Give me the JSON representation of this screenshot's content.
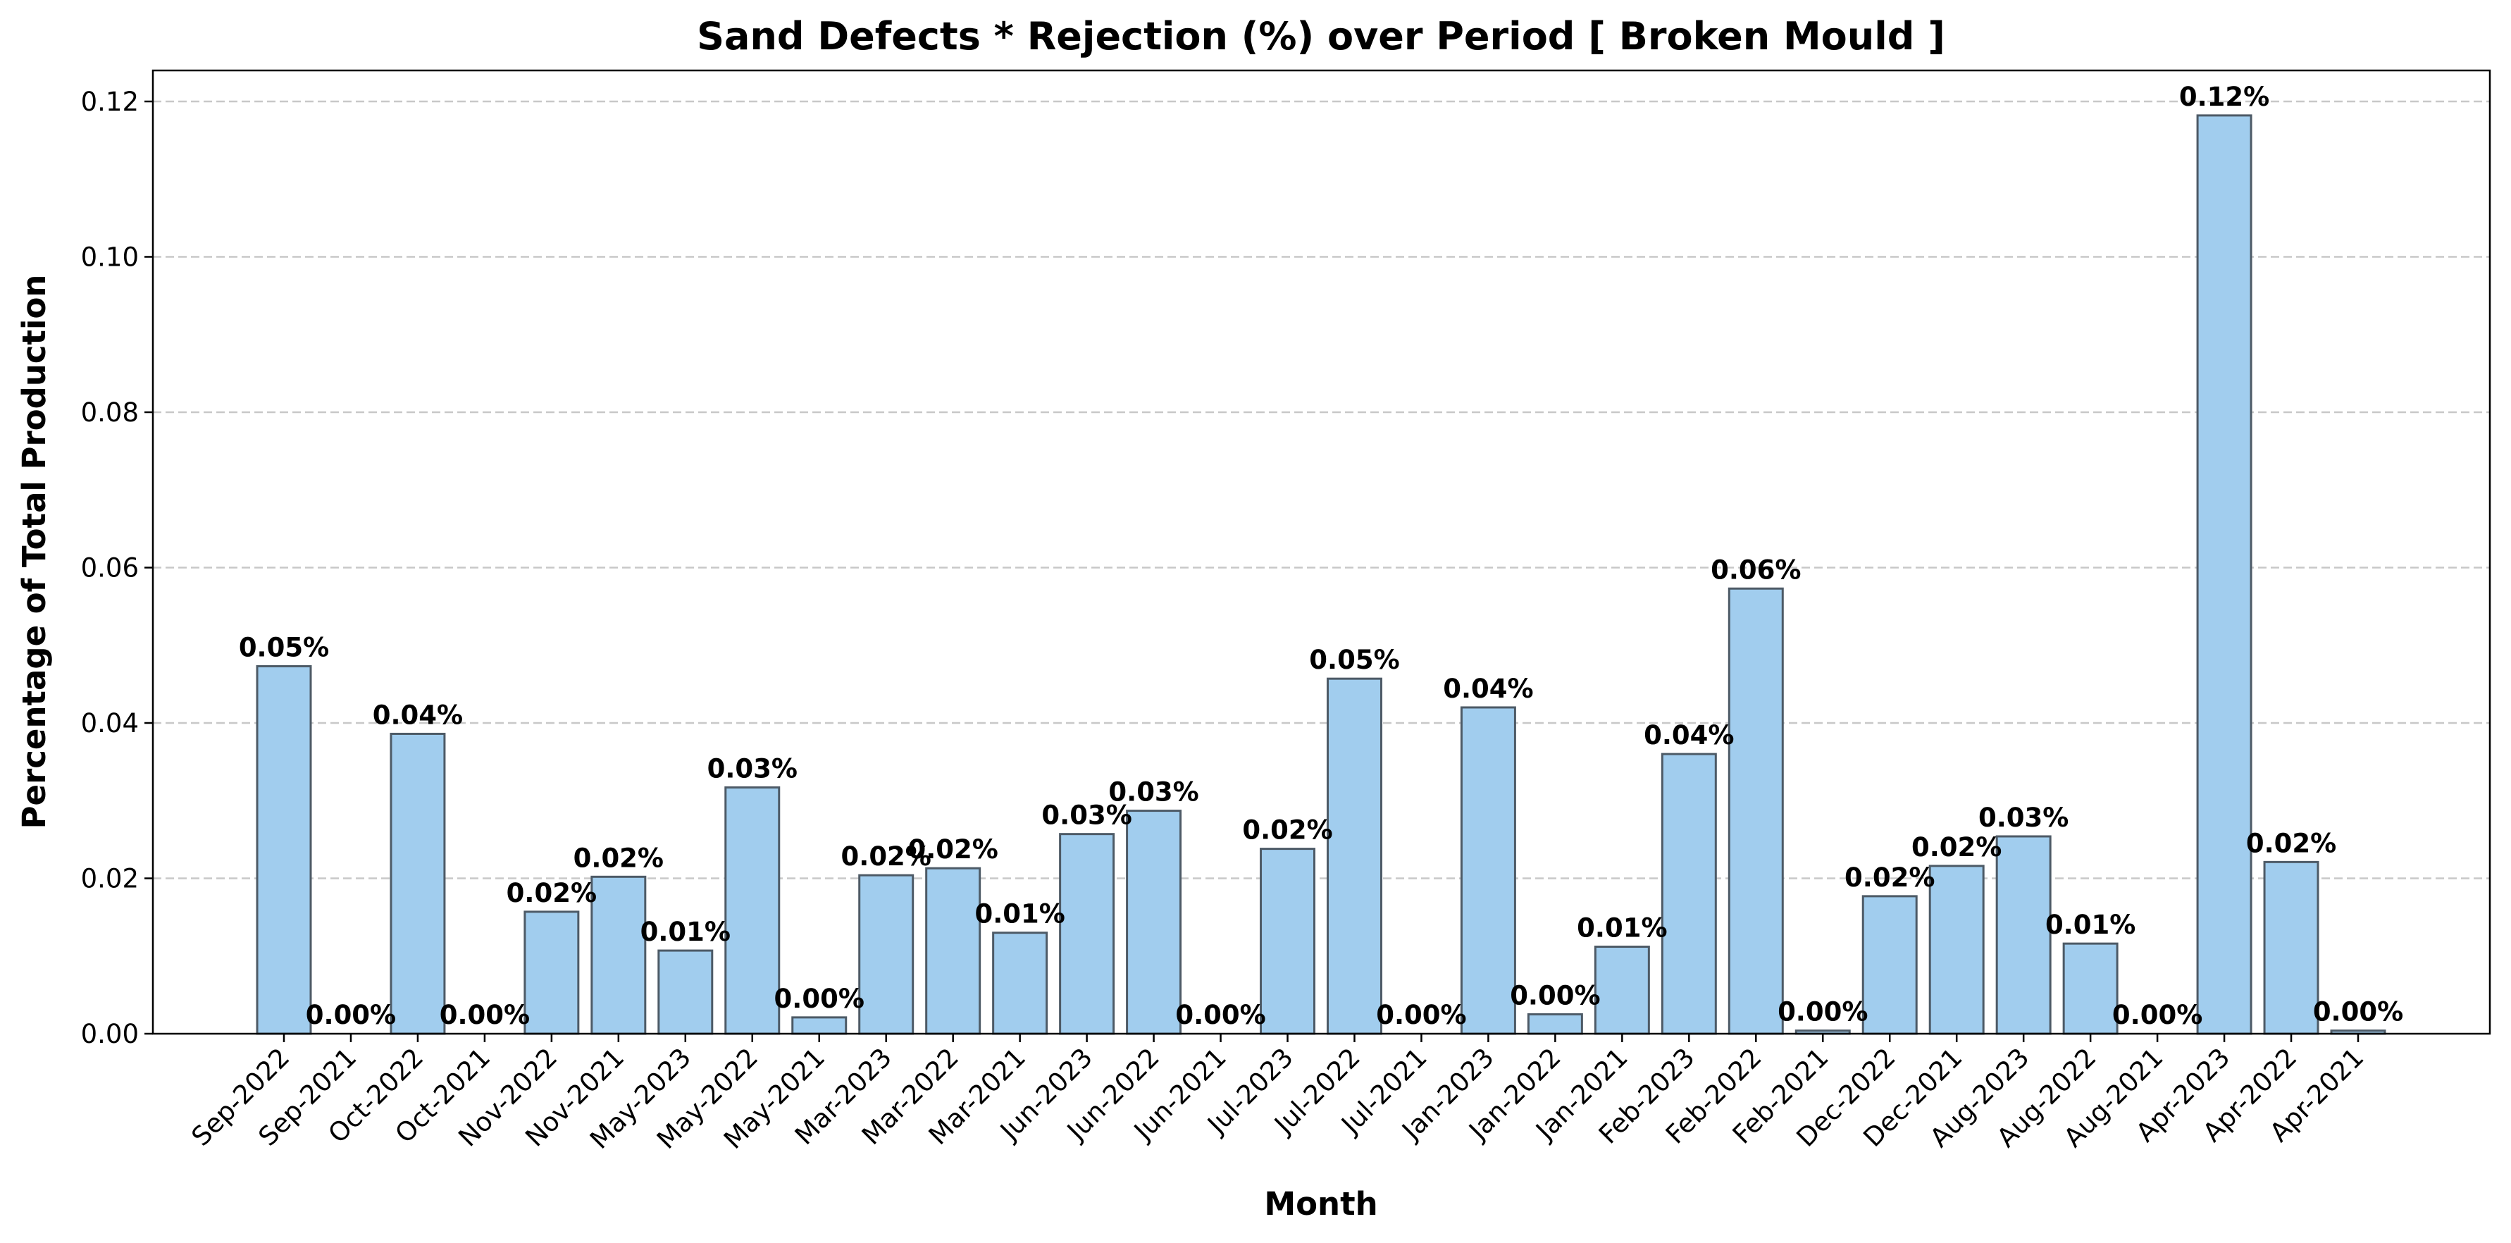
{
  "chart_data": {
    "type": "bar",
    "title": "Sand Defects * Rejection (%) over Period [ Broken Mould ]",
    "xlabel": "Month",
    "ylabel": "Percentage of Total Production",
    "ylim": [
      0,
      0.124
    ],
    "yticks": [
      0.0,
      0.02,
      0.04,
      0.06,
      0.08,
      0.1,
      0.12
    ],
    "ytick_labels": [
      "0.00",
      "0.02",
      "0.04",
      "0.06",
      "0.08",
      "0.10",
      "0.12"
    ],
    "grid": "y-dashed",
    "bar_color": "#a1cdee",
    "bar_edge_color": "#4d5a66",
    "categories": [
      "Sep-2022",
      "Sep-2021",
      "Oct-2022",
      "Oct-2021",
      "Nov-2022",
      "Nov-2021",
      "May-2023",
      "May-2022",
      "May-2021",
      "Mar-2023",
      "Mar-2022",
      "Mar-2021",
      "Jun-2023",
      "Jun-2022",
      "Jun-2021",
      "Jul-2023",
      "Jul-2022",
      "Jul-2021",
      "Jan-2023",
      "Jan-2022",
      "Jan-2021",
      "Feb-2023",
      "Feb-2022",
      "Feb-2021",
      "Dec-2022",
      "Dec-2021",
      "Aug-2023",
      "Aug-2022",
      "Aug-2021",
      "Apr-2023",
      "Apr-2022",
      "Apr-2021"
    ],
    "values": [
      0.0473,
      0.0,
      0.0386,
      0.0,
      0.0157,
      0.0202,
      0.0107,
      0.0317,
      0.0021,
      0.0204,
      0.0213,
      0.013,
      0.0257,
      0.0287,
      0.0,
      0.0238,
      0.0457,
      0.0,
      0.042,
      0.0025,
      0.0112,
      0.036,
      0.0573,
      0.0004,
      0.0177,
      0.0216,
      0.0254,
      0.0116,
      0.0,
      0.1182,
      0.0221,
      0.0004
    ],
    "labels": [
      "0.05%",
      "0.00%",
      "0.04%",
      "0.00%",
      "0.02%",
      "0.02%",
      "0.01%",
      "0.03%",
      "0.00%",
      "0.02%",
      "0.02%",
      "0.01%",
      "0.03%",
      "0.03%",
      "0.00%",
      "0.02%",
      "0.05%",
      "0.00%",
      "0.04%",
      "0.00%",
      "0.01%",
      "0.04%",
      "0.06%",
      "0.00%",
      "0.02%",
      "0.02%",
      "0.03%",
      "0.01%",
      "0.00%",
      "0.12%",
      "0.02%",
      "0.00%"
    ]
  }
}
